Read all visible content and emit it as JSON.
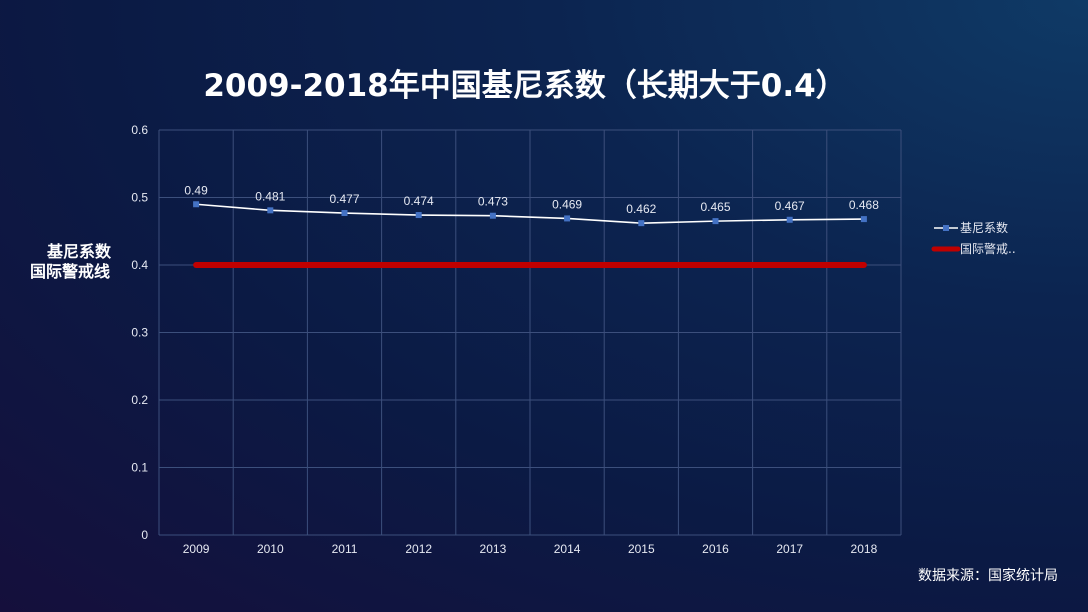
{
  "chart_data": {
    "type": "line",
    "title": "2009-2018年中国基尼系数（长期大于0.4）",
    "categories": [
      "2009",
      "2010",
      "2011",
      "2012",
      "2013",
      "2014",
      "2015",
      "2016",
      "2017",
      "2018"
    ],
    "series": [
      {
        "name": "基尼系数",
        "values": [
          0.49,
          0.481,
          0.477,
          0.474,
          0.473,
          0.469,
          0.462,
          0.465,
          0.467,
          0.468
        ],
        "data_labels": [
          "0.49",
          "0.481",
          "0.477",
          "0.474",
          "0.473",
          "0.469",
          "0.462",
          "0.465",
          "0.467",
          "0.468"
        ],
        "color": "#ffffff",
        "marker_color": "#4472c4"
      },
      {
        "name": "国际警戒..",
        "values": [
          0.4,
          0.4,
          0.4,
          0.4,
          0.4,
          0.4,
          0.4,
          0.4,
          0.4,
          0.4
        ],
        "color": "#c00000"
      }
    ],
    "ylim": [
      0,
      0.6
    ],
    "yticks": [
      "0",
      "0.1",
      "0.2",
      "0.3",
      "0.4",
      "0.5",
      "0.6"
    ],
    "grid": true,
    "legend": "right"
  },
  "annotations": {
    "side_label_line1": "基尼系数",
    "side_label_line2": "国际警戒线",
    "source": "数据来源：国家统计局"
  }
}
